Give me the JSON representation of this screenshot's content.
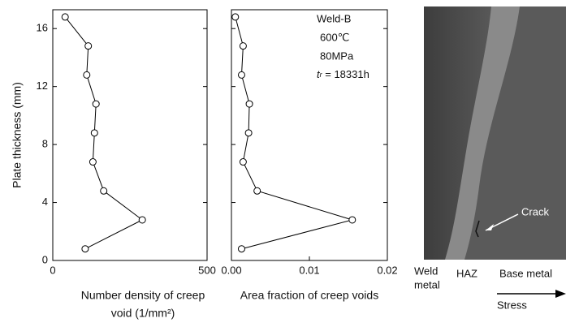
{
  "chart_data": [
    {
      "type": "line",
      "ylabel": "Plate thickness (mm)",
      "xlabel": [
        "Number density of  creep",
        "void (1/mm²)"
      ],
      "xlim": [
        0,
        500
      ],
      "xticks": [
        0,
        500
      ],
      "ylim": [
        0,
        17.3
      ],
      "yticks": [
        0,
        4,
        8,
        12,
        16
      ],
      "series": [
        {
          "color": "#000000",
          "x": [
            40,
            115,
            110,
            140,
            135,
            130,
            165,
            290,
            105
          ],
          "values": [
            16.8,
            14.8,
            12.8,
            10.8,
            8.8,
            6.8,
            4.8,
            2.8,
            0.8
          ]
        }
      ]
    },
    {
      "type": "line",
      "xlabel": [
        "Area fraction of creep voids"
      ],
      "xlim": [
        0,
        0.02
      ],
      "xticks": [
        {
          "value": 0,
          "label": "0.00"
        },
        0.01,
        0.02
      ],
      "ylim": [
        0,
        17.3
      ],
      "yticks": [
        0,
        4,
        8,
        12,
        16
      ],
      "annotations": [
        "Weld-B",
        "600℃",
        "80MPa"
      ],
      "rupture_time": {
        "symbol": "t",
        "subscript": "r",
        "text": " = 18331h"
      },
      "series": [
        {
          "color": "#000000",
          "x": [
            0.0005,
            0.0015,
            0.0013,
            0.0023,
            0.0022,
            0.0015,
            0.0033,
            0.0155,
            0.0013
          ],
          "values": [
            16.8,
            14.8,
            12.8,
            10.8,
            8.8,
            6.8,
            4.8,
            2.8,
            0.8
          ]
        }
      ]
    }
  ],
  "micrograph": {
    "weld": [
      "Weld",
      "metal"
    ],
    "haz": "HAZ",
    "base": "Base metal",
    "crack": "Crack",
    "stress": "Stress"
  }
}
